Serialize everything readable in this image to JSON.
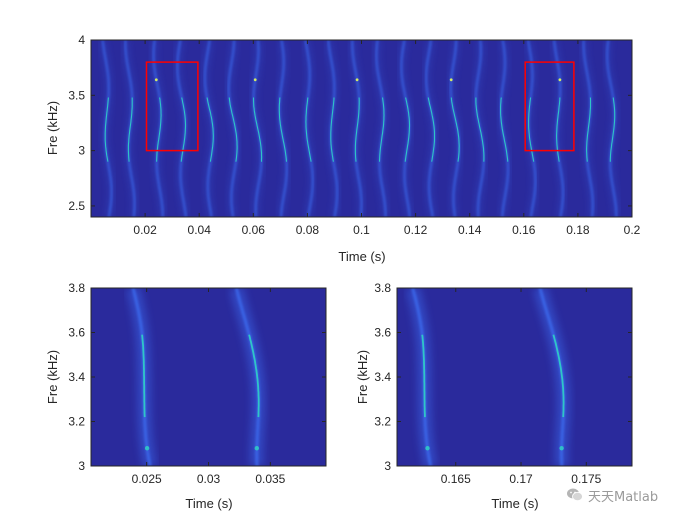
{
  "chart_data": [
    {
      "type": "heatmap",
      "id": "top",
      "xlabel": "Time (s)",
      "ylabel": "Fre (kHz)",
      "xlim": [
        0,
        0.2
      ],
      "ylim": [
        2.4,
        4.0
      ],
      "xticks": [
        0.02,
        0.04,
        0.06,
        0.08,
        0.1,
        0.12,
        0.14,
        0.16,
        0.18,
        0.2
      ],
      "yticks": [
        2.5,
        3,
        3.5,
        4
      ],
      "colors": {
        "background": "#2a2a9c",
        "ridge_low": "#3c6cf0",
        "ridge_high": "#2fd1c4",
        "highlight": "#e8ff5a"
      },
      "ridge_times": [
        0.0059,
        0.0144,
        0.0248,
        0.0336,
        0.0437,
        0.0524,
        0.0614,
        0.0707,
        0.0803,
        0.0893,
        0.0983,
        0.1072,
        0.1164,
        0.1255,
        0.1345,
        0.1436,
        0.1525,
        0.1626,
        0.1728,
        0.1838,
        0.1925
      ],
      "zoom_boxes": [
        {
          "x": [
            0.0205,
            0.0395
          ],
          "y": [
            3.0,
            3.8
          ],
          "color": "#ff0000"
        },
        {
          "x": [
            0.1605,
            0.1785
          ],
          "y": [
            3.0,
            3.8
          ],
          "color": "#ff0000"
        }
      ]
    },
    {
      "type": "heatmap",
      "id": "zoom-left",
      "xlabel": "Time (s)",
      "ylabel": "Fre (kHz)",
      "xlim": [
        0.0205,
        0.0395
      ],
      "ylim": [
        3.0,
        3.8
      ],
      "xticks": [
        0.025,
        0.03,
        0.035
      ],
      "yticks": [
        3,
        3.2,
        3.4,
        3.6,
        3.8
      ],
      "ridge_times": [
        0.0248,
        0.0336
      ],
      "colors": {
        "background": "#2a2a9c",
        "ridge_low": "#3c6cf0",
        "ridge_high": "#2fd1c4"
      }
    },
    {
      "type": "heatmap",
      "id": "zoom-right",
      "xlabel": "Time (s)",
      "ylabel": "Fre (kHz)",
      "xlim": [
        0.1605,
        0.1785
      ],
      "ylim": [
        3.0,
        3.8
      ],
      "xticks": [
        0.165,
        0.17,
        0.175
      ],
      "yticks": [
        3,
        3.2,
        3.4,
        3.6,
        3.8
      ],
      "ridge_times": [
        0.1626,
        0.1728
      ],
      "colors": {
        "background": "#2a2a9c",
        "ridge_low": "#3c6cf0",
        "ridge_high": "#2fd1c4"
      }
    }
  ],
  "watermark": {
    "text": "天天Matlab",
    "icon": "wechat-icon"
  }
}
